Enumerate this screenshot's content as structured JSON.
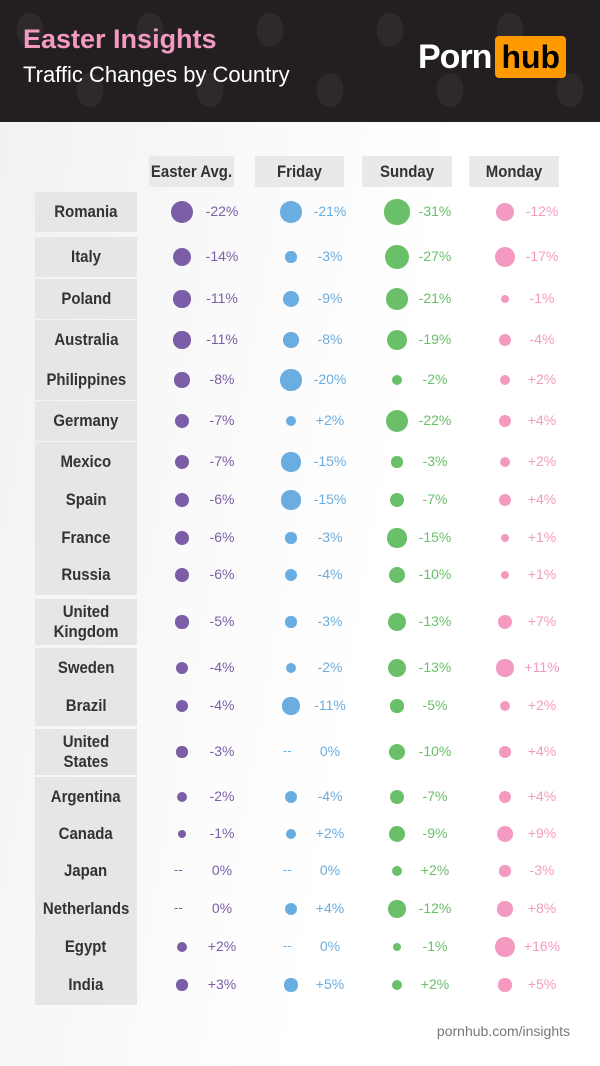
{
  "header": {
    "title": "Easter Insights",
    "subtitle": "Traffic Changes by Country",
    "logo_text": "Porn",
    "logo_badge": "hub"
  },
  "footer": {
    "url": "pornhub.com/insights"
  },
  "chart_data": {
    "type": "table",
    "title": "Easter Insights",
    "subtitle": "Traffic Changes by Country",
    "columns": [
      "Easter Avg.",
      "Friday",
      "Sunday",
      "Monday"
    ],
    "colors": [
      "#7b5ea7",
      "#6aade0",
      "#6abf69",
      "#f49ac1"
    ],
    "rows": [
      {
        "country": "Romania",
        "values": [
          "-22%",
          "-21%",
          "-31%",
          "-12%"
        ]
      },
      {
        "country": "Italy",
        "values": [
          "-14%",
          "-3%",
          "-27%",
          "-17%"
        ]
      },
      {
        "country": "Poland",
        "values": [
          "-11%",
          "-9%",
          "-21%",
          "-1%"
        ]
      },
      {
        "country": "Australia",
        "values": [
          "-11%",
          "-8%",
          "-19%",
          "-4%"
        ]
      },
      {
        "country": "Philippines",
        "values": [
          "-8%",
          "-20%",
          "-2%",
          "+2%"
        ]
      },
      {
        "country": "Germany",
        "values": [
          "-7%",
          "+2%",
          "-22%",
          "+4%"
        ]
      },
      {
        "country": "Mexico",
        "values": [
          "-7%",
          "-15%",
          "-3%",
          "+2%"
        ]
      },
      {
        "country": "Spain",
        "values": [
          "-6%",
          "-15%",
          "-7%",
          "+4%"
        ]
      },
      {
        "country": "France",
        "values": [
          "-6%",
          "-3%",
          "-15%",
          "+1%"
        ]
      },
      {
        "country": "Russia",
        "values": [
          "-6%",
          "-4%",
          "-10%",
          "+1%"
        ]
      },
      {
        "country": "United Kingdom",
        "values": [
          "-5%",
          "-3%",
          "-13%",
          "+7%"
        ]
      },
      {
        "country": "Sweden",
        "values": [
          "-4%",
          "-2%",
          "-13%",
          "+11%"
        ]
      },
      {
        "country": "Brazil",
        "values": [
          "-4%",
          "-11%",
          "-5%",
          "+2%"
        ]
      },
      {
        "country": "United States",
        "values": [
          "-3%",
          "0%",
          "-10%",
          "+4%"
        ]
      },
      {
        "country": "Argentina",
        "values": [
          "-2%",
          "-4%",
          "-7%",
          "+4%"
        ]
      },
      {
        "country": "Canada",
        "values": [
          "-1%",
          "+2%",
          "-9%",
          "+9%"
        ]
      },
      {
        "country": "Japan",
        "values": [
          "0%",
          "0%",
          "+2%",
          "-3%"
        ]
      },
      {
        "country": "Netherlands",
        "values": [
          "0%",
          "+4%",
          "-12%",
          "+8%"
        ]
      },
      {
        "country": "Egypt",
        "values": [
          "+2%",
          "0%",
          "-1%",
          "+16%"
        ]
      },
      {
        "country": "India",
        "values": [
          "+3%",
          "+5%",
          "+2%",
          "+5%"
        ]
      }
    ]
  }
}
